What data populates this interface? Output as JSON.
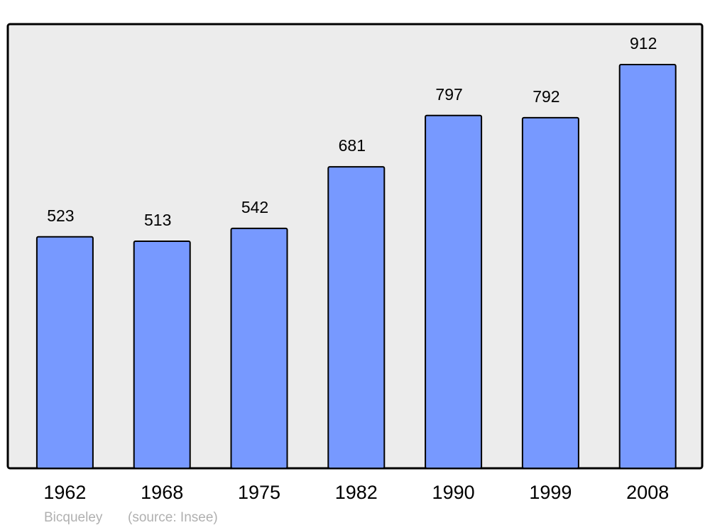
{
  "chart_data": {
    "type": "bar",
    "categories": [
      "1962",
      "1968",
      "1975",
      "1982",
      "1990",
      "1999",
      "2008"
    ],
    "values": [
      523,
      513,
      542,
      681,
      797,
      792,
      912
    ],
    "color": "#7799ff",
    "place": "Bicqueley",
    "source": "(source: Insee)"
  }
}
